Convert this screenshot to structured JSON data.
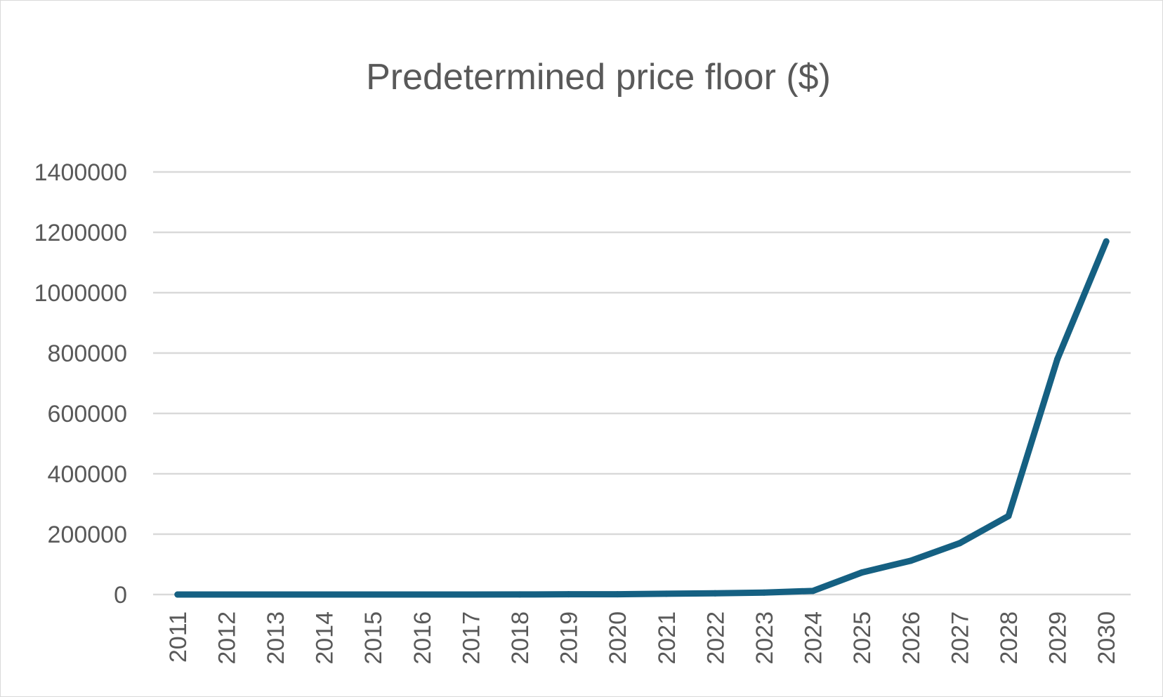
{
  "chart_data": {
    "type": "line",
    "title": "Predetermined price floor ($)",
    "xlabel": "",
    "ylabel": "",
    "categories": [
      "2011",
      "2012",
      "2013",
      "2014",
      "2015",
      "2016",
      "2017",
      "2018",
      "2019",
      "2020",
      "2021",
      "2022",
      "2023",
      "2024",
      "2025",
      "2026",
      "2027",
      "2028",
      "2029",
      "2030"
    ],
    "series": [
      {
        "values": [
          0,
          0,
          0,
          0,
          0,
          0,
          0,
          200,
          800,
          1000,
          2500,
          4000,
          6500,
          12000,
          73000,
          112000,
          170000,
          260000,
          780000,
          1170000
        ],
        "color": "#156082"
      }
    ],
    "ylim": [
      0,
      1400000
    ],
    "yticks": [
      "0",
      "200000",
      "400000",
      "600000",
      "800000",
      "1000000",
      "1200000",
      "1400000"
    ],
    "grid": true,
    "legend": "none",
    "colors": {
      "line": "#156082",
      "grid": "#d9d9d9",
      "text": "#595959",
      "border": "#d9d9d9"
    }
  }
}
